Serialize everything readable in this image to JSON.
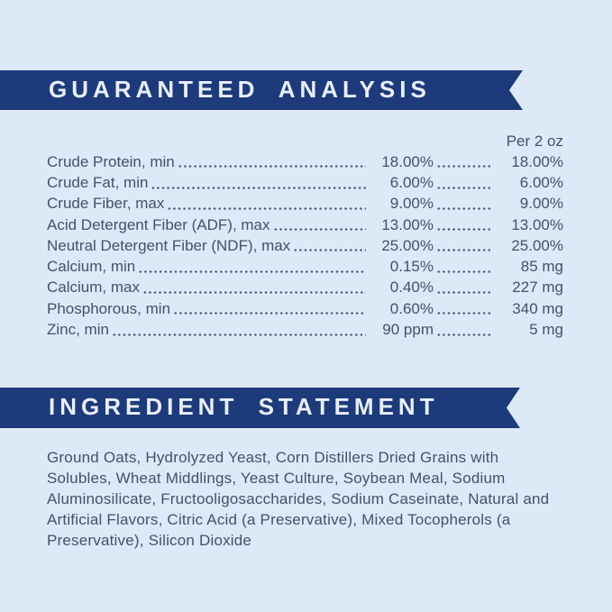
{
  "palette": {
    "background": "#dee9f8",
    "banner": "#1d3a7b",
    "banner_text": "#e9effa",
    "body_text": "#42526a"
  },
  "guaranteed_analysis": {
    "title": "GUARANTEED ANALYSIS",
    "column_header": "Per 2 oz",
    "rows": [
      {
        "label": "Crude Protein, min",
        "value": "18.00%",
        "per_2oz": "18.00%"
      },
      {
        "label": "Crude Fat, min",
        "value": "6.00%",
        "per_2oz": "6.00%"
      },
      {
        "label": "Crude Fiber, max",
        "value": "9.00%",
        "per_2oz": "9.00%"
      },
      {
        "label": "Acid Detergent Fiber (ADF), max",
        "value": "13.00%",
        "per_2oz": "13.00%"
      },
      {
        "label": "Neutral Detergent Fiber (NDF), max",
        "value": "25.00%",
        "per_2oz": "25.00%"
      },
      {
        "label": "Calcium, min",
        "value": "0.15%",
        "per_2oz": "85 mg"
      },
      {
        "label": "Calcium, max",
        "value": "0.40%",
        "per_2oz": "227 mg"
      },
      {
        "label": "Phosphorous, min",
        "value": "0.60%",
        "per_2oz": "340 mg"
      },
      {
        "label": "Zinc, min",
        "value": "90 ppm",
        "per_2oz": "5 mg"
      }
    ]
  },
  "ingredient_statement": {
    "title": "INGREDIENT STATEMENT",
    "text": "Ground Oats, Hydrolyzed Yeast, Corn Distillers Dried Grains with Solubles, Wheat Middlings, Yeast Culture, Soybean Meal, Sodium Aluminosilicate, Fructooligosaccharides, Sodium Caseinate, Natural and Artificial Flavors, Citric Acid (a Preservative), Mixed Tocopherols (a Preservative), Silicon Dioxide"
  }
}
